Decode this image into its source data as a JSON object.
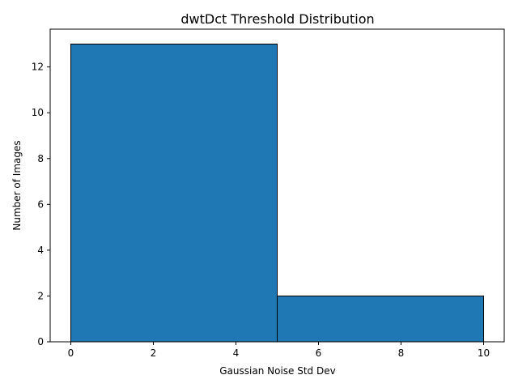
{
  "chart_data": {
    "type": "bar",
    "title": "dwtDct Threshold Distribution",
    "xlabel": "Gaussian Noise Std Dev",
    "ylabel": "Number of Images",
    "bins": [
      {
        "x0": 0,
        "x1": 5,
        "count": 13
      },
      {
        "x0": 5,
        "x1": 10,
        "count": 2
      }
    ],
    "xlim": [
      -0.5,
      10.5
    ],
    "ylim": [
      0,
      13.65
    ],
    "x_ticks": [
      "0",
      "2",
      "4",
      "6",
      "8",
      "10"
    ],
    "y_ticks": [
      "0",
      "2",
      "4",
      "6",
      "8",
      "10",
      "12"
    ],
    "grid": false,
    "legend": "none",
    "colors": {
      "bar_fill": "#1f77b4",
      "bar_edge": "#000000",
      "axis": "#000000"
    }
  }
}
